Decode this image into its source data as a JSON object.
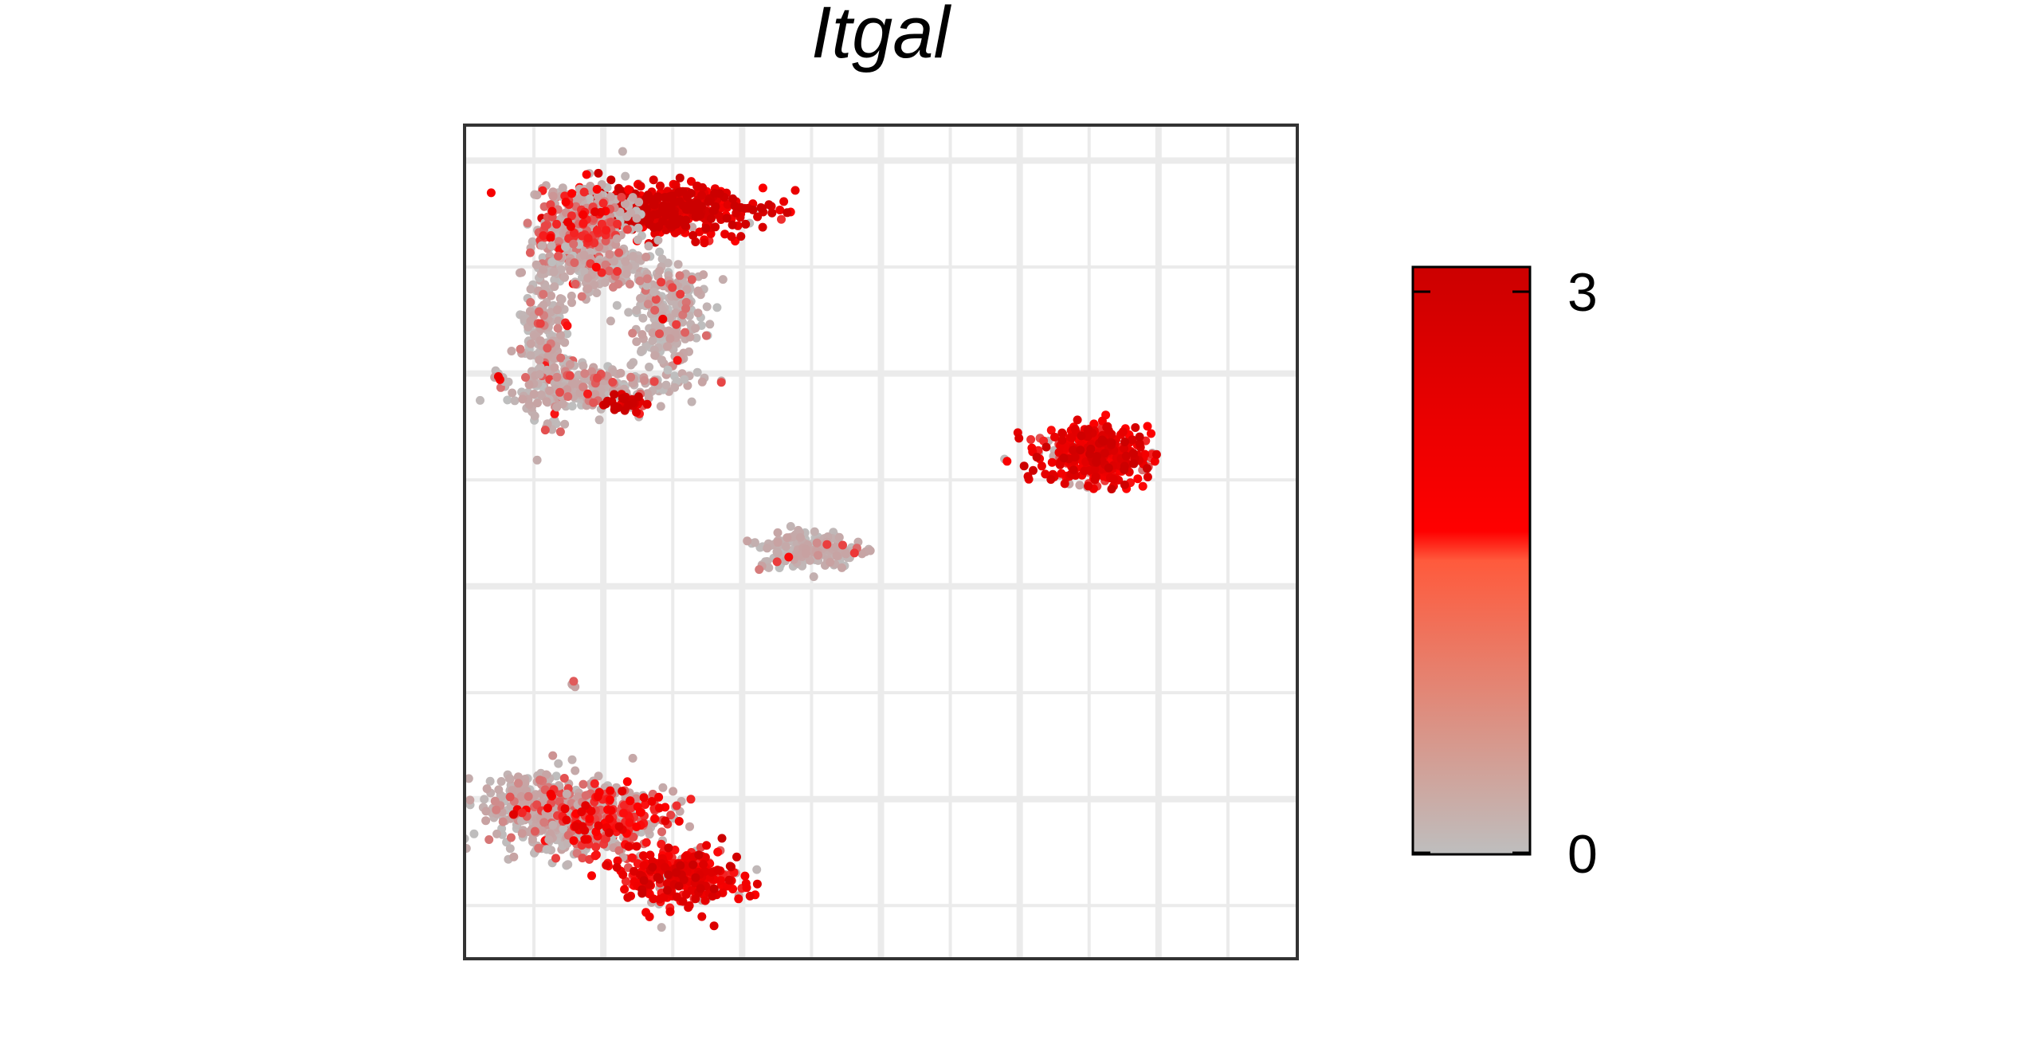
{
  "chart_data": {
    "type": "scatter",
    "title": "Itgal",
    "xlabel": "",
    "ylabel": "",
    "grid": true,
    "legend_position": "right",
    "colors": {
      "low": "#bebebe",
      "mid": "#ff0000",
      "high": "#cc0000",
      "grid": "#ebebeb",
      "frame": "#333333"
    },
    "colorbar": {
      "min": 0,
      "max": 3,
      "ticks": [
        0,
        3
      ],
      "tick_labels": [
        "0",
        "3"
      ]
    },
    "clusters": [
      {
        "name": "top-left-band",
        "cx": -4.2,
        "cy": 8.6,
        "sx": 1.2,
        "sy": 0.35,
        "n": 500,
        "expr_mean": 2.5
      },
      {
        "name": "top-left-upper",
        "cx": -6.6,
        "cy": 8.2,
        "sx": 0.7,
        "sy": 0.6,
        "n": 380,
        "expr_mean": 0.9
      },
      {
        "name": "ring-left",
        "cx": -7.6,
        "cy": 4.9,
        "sx": 0.35,
        "sy": 1.1,
        "n": 220,
        "expr_mean": 0.4
      },
      {
        "name": "ring-right",
        "cx": -4.2,
        "cy": 5.6,
        "sx": 0.6,
        "sy": 0.9,
        "n": 240,
        "expr_mean": 0.4
      },
      {
        "name": "ring-bottom",
        "cx": -6.5,
        "cy": 3.6,
        "sx": 1.2,
        "sy": 0.3,
        "n": 240,
        "expr_mean": 0.4
      },
      {
        "name": "ring-top",
        "cx": -5.9,
        "cy": 6.9,
        "sx": 1.0,
        "sy": 0.35,
        "n": 150,
        "expr_mean": 0.4
      },
      {
        "name": "small-red-blob",
        "cx": -5.4,
        "cy": 3.15,
        "sx": 0.25,
        "sy": 0.12,
        "n": 40,
        "expr_mean": 2.6
      },
      {
        "name": "tiny-left",
        "cx": -9.0,
        "cy": 3.9,
        "sx": 0.1,
        "sy": 0.05,
        "n": 10,
        "expr_mean": 1.3
      },
      {
        "name": "right-cluster",
        "cx": 8.2,
        "cy": 1.7,
        "sx": 0.75,
        "sy": 0.38,
        "n": 420,
        "expr_mean": 2.0
      },
      {
        "name": "center-cluster",
        "cx": -0.1,
        "cy": -1.0,
        "sx": 0.8,
        "sy": 0.25,
        "n": 180,
        "expr_mean": 0.3
      },
      {
        "name": "tiny-middle",
        "cx": -6.9,
        "cy": -4.8,
        "sx": 0.06,
        "sy": 0.06,
        "n": 6,
        "expr_mean": 0.3
      },
      {
        "name": "bottom-left-group",
        "cx": -7.6,
        "cy": -8.3,
        "sx": 0.9,
        "sy": 0.55,
        "n": 420,
        "expr_mean": 0.5
      },
      {
        "name": "bottom-mid-group",
        "cx": -5.8,
        "cy": -8.5,
        "sx": 0.9,
        "sy": 0.5,
        "n": 320,
        "expr_mean": 1.2
      },
      {
        "name": "bottom-tail",
        "cx": -3.7,
        "cy": -10.2,
        "sx": 0.9,
        "sy": 0.4,
        "n": 320,
        "expr_mean": 1.9
      }
    ],
    "xlim": [
      -10,
      14
    ],
    "ylim": [
      -12.5,
      11
    ],
    "x_gridlines": [
      -8,
      -6,
      -4,
      -2,
      0,
      2,
      4,
      6,
      8,
      10,
      12
    ],
    "y_gridlines": [
      -11,
      -8,
      -5,
      -2,
      1,
      4,
      7,
      10
    ]
  }
}
